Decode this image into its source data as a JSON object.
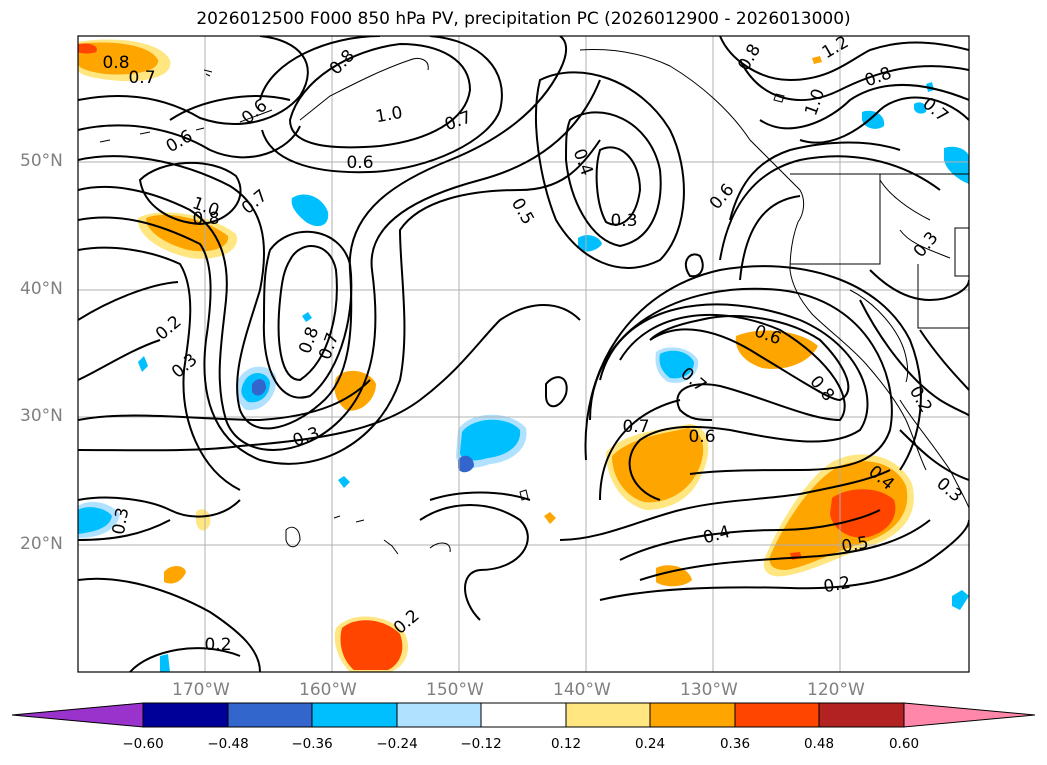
{
  "title": "2026012500 F000 850 hPa PV, precipitation PC (2026012900 - 2026013000)",
  "lat_labels": [
    "50°N",
    "40°N",
    "30°N",
    "20°N"
  ],
  "lon_labels": [
    "170°W",
    "160°W",
    "150°W",
    "140°W",
    "130°W",
    "120°W"
  ],
  "colorbar": {
    "ticks": [
      "−0.60",
      "−0.48",
      "−0.36",
      "−0.24",
      "−0.12",
      "0.12",
      "0.24",
      "0.36",
      "0.48",
      "0.60"
    ],
    "colors": [
      "#9933cc",
      "#000099",
      "#3366cc",
      "#00bfff",
      "#b0e2ff",
      "#ffffff",
      "#ffe680",
      "#ffa500",
      "#ff4500",
      "#b22222",
      "#ff88aa"
    ]
  },
  "contour_labels": [
    "0.8",
    "0.7",
    "0.8",
    "1.2",
    "0.8",
    "1.0",
    "0.8",
    "0.7",
    "0.6",
    "1.0",
    "0.7",
    "0.6",
    "0.6",
    "0.4",
    "0.5",
    "0.3",
    "0.6",
    "0.3",
    "1.0",
    "0.8",
    "0.7",
    "0.2",
    "0.3",
    "0.8",
    "0.7",
    "0.3",
    "0.6",
    "0.7",
    "0.8",
    "0.7",
    "0.6",
    "0.2",
    "0.4",
    "0.5",
    "0.4",
    "0.2",
    "0.3",
    "0.2",
    "0.2",
    "0.3"
  ]
}
